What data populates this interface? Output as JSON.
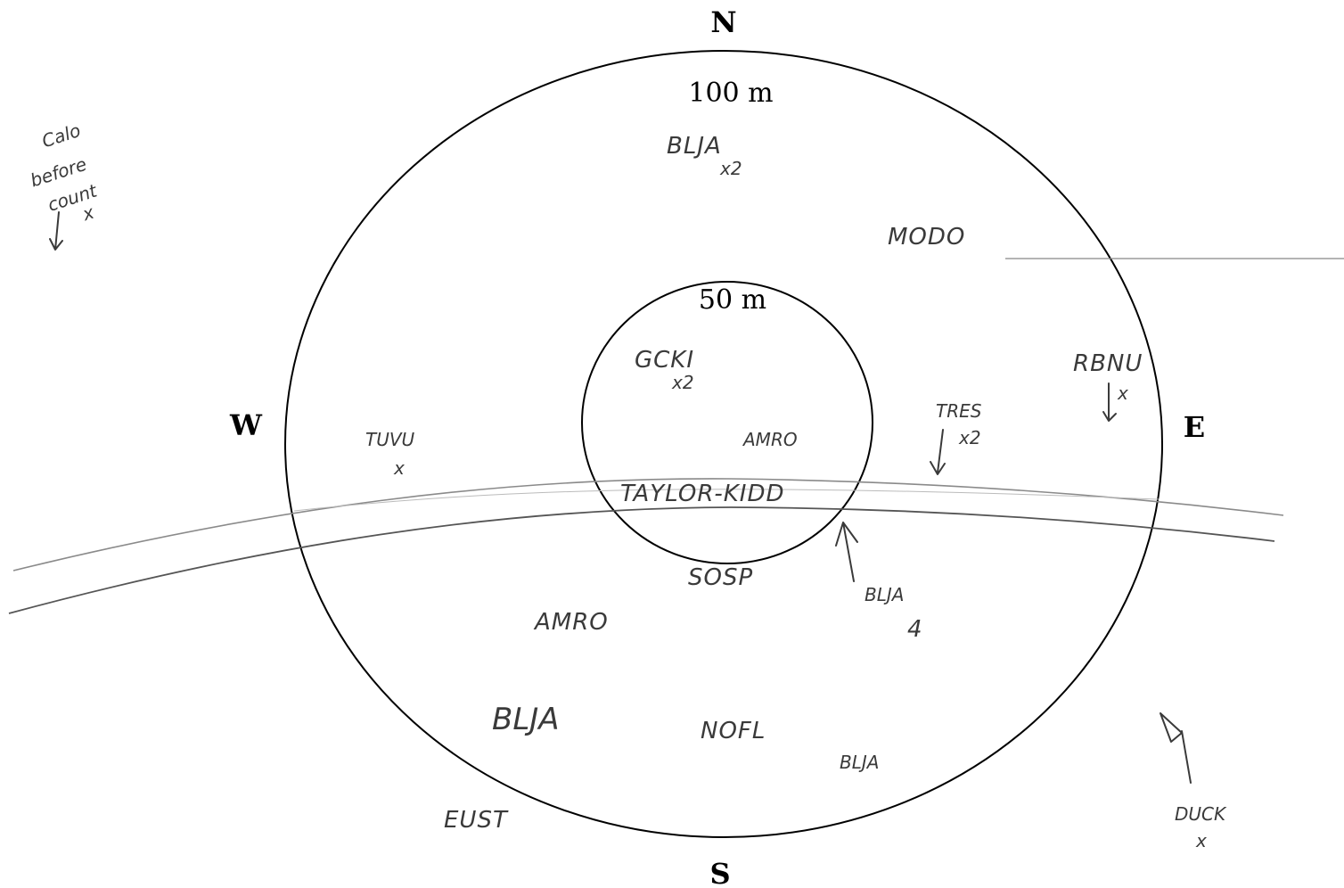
{
  "compass": {
    "north": "N",
    "south": "S",
    "east": "E",
    "west": "W"
  },
  "rings": {
    "outer_label": "100 m",
    "inner_label": "50 m"
  },
  "margin_note": [
    "Calo",
    "before",
    "count",
    "x"
  ],
  "road_label": "TAYLOR-KIDD",
  "observations": {
    "blja_north": "BLJA",
    "blja_north_count": "x2",
    "modo": "MODO",
    "gcki": "GCKI",
    "gcki_count": "x2",
    "amro_center": "AMRO",
    "rbnu": "RBNU",
    "rbnu_mark": "x",
    "tres": "TRES",
    "tres_count": "x2",
    "tuvu": "TUVU",
    "tuvu_mark": "x",
    "sosp": "SOSP",
    "blja_se": "BLJA",
    "blja_se_count": "4",
    "amro_sw": "AMRO",
    "blja_sw": "BLJA",
    "nofl": "NOFL",
    "blja_s": "BLJA",
    "eust": "EUST",
    "duck": "DUCK",
    "duck_mark": "x"
  }
}
